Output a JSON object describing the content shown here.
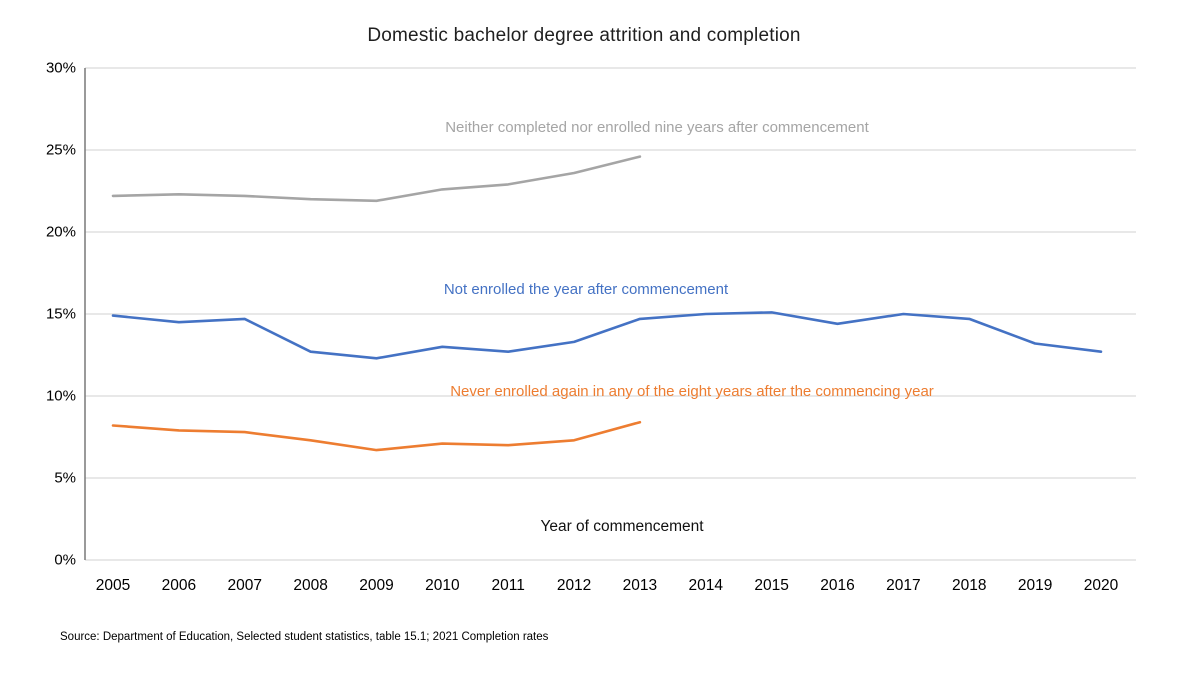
{
  "title": "Domestic bachelor degree attrition and completion",
  "x_axis_title": "Year of commencement",
  "source": "Source: Department of Education, Selected student statistics, table 15.1; 2021 Completion rates",
  "axis_colors": {
    "axis_line": "#808080",
    "gridline": "#d9d9d9"
  },
  "chart_data": {
    "type": "line",
    "x": [
      2005,
      2006,
      2007,
      2008,
      2009,
      2010,
      2011,
      2012,
      2013,
      2014,
      2015,
      2016,
      2017,
      2018,
      2019,
      2020
    ],
    "series": [
      {
        "name": "Neither completed nor enrolled nine years after commencement",
        "color": "#a5a5a5",
        "values": [
          22.2,
          22.3,
          22.2,
          22.0,
          21.9,
          22.6,
          22.9,
          23.6,
          24.6,
          null,
          null,
          null,
          null,
          null,
          null,
          null
        ]
      },
      {
        "name": "Not enrolled the year after commencement",
        "color": "#4472c4",
        "values": [
          14.9,
          14.5,
          14.7,
          12.7,
          12.3,
          13.0,
          12.7,
          13.3,
          14.7,
          15.0,
          15.1,
          14.4,
          15.0,
          14.7,
          13.2,
          12.7
        ]
      },
      {
        "name": "Never enrolled again in any of the eight years after the commencing year",
        "color": "#ed7d31",
        "values": [
          8.2,
          7.9,
          7.8,
          7.3,
          6.7,
          7.1,
          7.0,
          7.3,
          8.4,
          null,
          null,
          null,
          null,
          null,
          null,
          null
        ]
      }
    ],
    "ylim": [
      0,
      30
    ],
    "y_tick_step": 5,
    "y_tick_labels": [
      "0%",
      "5%",
      "10%",
      "15%",
      "20%",
      "25%",
      "30%"
    ],
    "grid": true,
    "legend_position": "inline-annotations"
  }
}
